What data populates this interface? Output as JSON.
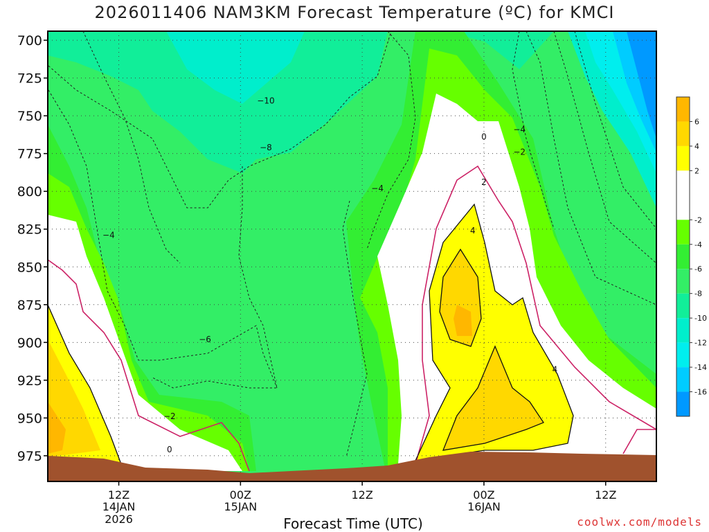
{
  "chart_data": {
    "type": "heatmap",
    "title": "2026011406 NAM3KM Forecast Temperature (ºC) for KMCI",
    "xlabel": "Forecast Time (UTC)",
    "ylabel": "",
    "y_axis": {
      "ticks": [
        "700",
        "725",
        "750",
        "775",
        "800",
        "825",
        "850",
        "875",
        "900",
        "925",
        "950",
        "975"
      ],
      "range_hPa": [
        694,
        992
      ],
      "inverted": true,
      "grid": true
    },
    "x_axis": {
      "ticks": [
        {
          "label": "12Z",
          "sub1": "14JAN",
          "sub2": "2026",
          "hour": 12
        },
        {
          "label": "00Z",
          "sub1": "15JAN",
          "sub2": "",
          "hour": 24
        },
        {
          "label": "12Z",
          "sub1": "",
          "sub2": "",
          "hour": 36
        },
        {
          "label": "00Z",
          "sub1": "16JAN",
          "sub2": "",
          "hour": 48
        },
        {
          "label": "12Z",
          "sub1": "",
          "sub2": "",
          "hour": 60
        }
      ],
      "range_hours": [
        5,
        65
      ],
      "grid": true
    },
    "colorbar": {
      "placement": "right",
      "levels": [
        {
          "range": [
            6,
            8
          ],
          "color": "#ffb700"
        },
        {
          "range": [
            4,
            6
          ],
          "color": "#ffd800"
        },
        {
          "range": [
            2,
            4
          ],
          "color": "#ffff00"
        },
        {
          "range": [
            0,
            2
          ],
          "color": "#ffffff"
        },
        {
          "range": [
            -2,
            0
          ],
          "color": "#ffffff"
        },
        {
          "range": [
            -4,
            -2
          ],
          "color": "#66ff00"
        },
        {
          "range": [
            -6,
            -4
          ],
          "color": "#33ee33"
        },
        {
          "range": [
            -8,
            -6
          ],
          "color": "#33ee66"
        },
        {
          "range": [
            -10,
            -8
          ],
          "color": "#11ee99"
        },
        {
          "range": [
            -12,
            -10
          ],
          "color": "#00eecc"
        },
        {
          "range": [
            -14,
            -12
          ],
          "color": "#00eeee"
        },
        {
          "range": [
            -16,
            -14
          ],
          "color": "#00ccff"
        },
        {
          "range": [
            -18,
            -16
          ],
          "color": "#0099ff"
        }
      ],
      "labels": [
        "6",
        "4",
        "2",
        "-2",
        "-4",
        "-6",
        "-8",
        "-10",
        "-12",
        "-14",
        "-16"
      ]
    },
    "contour_labels": [
      {
        "text": "−10",
        "hour": 26.5,
        "hPa": 740
      },
      {
        "text": "−8",
        "hour": 26.5,
        "hPa": 771
      },
      {
        "text": "−4",
        "hour": 37.5,
        "hPa": 798
      },
      {
        "text": "−4",
        "hour": 51.5,
        "hPa": 759
      },
      {
        "text": "−4",
        "hour": 11.0,
        "hPa": 829
      },
      {
        "text": "−6",
        "hour": 20.5,
        "hPa": 898
      },
      {
        "text": "−2",
        "hour": 17.0,
        "hPa": 949
      },
      {
        "text": "0",
        "hour": 17.0,
        "hPa": 971
      },
      {
        "text": "0",
        "hour": 48.0,
        "hPa": 764
      },
      {
        "text": "−2",
        "hour": 51.5,
        "hPa": 774
      },
      {
        "text": "2",
        "hour": 48.0,
        "hPa": 794
      },
      {
        "text": "4",
        "hour": 46.9,
        "hPa": 826
      },
      {
        "text": "4",
        "hour": 55.0,
        "hPa": 918
      }
    ],
    "terrain_color": "#a0522d"
  },
  "credit": "coolwx.com/models"
}
